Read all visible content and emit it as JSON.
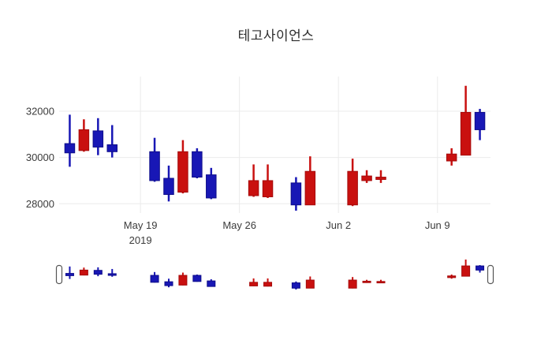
{
  "chart_data": {
    "type": "candlestick",
    "title": "테고사이언스",
    "x_epoch": "2019-05-13",
    "xlim_days": [
      0.25,
      30.75
    ],
    "ylim": [
      27600,
      33500
    ],
    "yticks": [
      28000,
      30000,
      32000
    ],
    "ytick_labels": [
      "28000",
      "30000",
      "32000"
    ],
    "xticks": [
      {
        "date": "2019-05-19",
        "label": "May 19",
        "sublabel": "2019"
      },
      {
        "date": "2019-05-26",
        "label": "May 26",
        "sublabel": ""
      },
      {
        "date": "2019-06-02",
        "label": "Jun 2",
        "sublabel": ""
      },
      {
        "date": "2019-06-09",
        "label": "Jun 9",
        "sublabel": ""
      }
    ],
    "grid": true,
    "legend": "none",
    "candles": [
      {
        "date": "2019-05-14",
        "open": 30600,
        "high": 31850,
        "low": 29600,
        "close": 30200
      },
      {
        "date": "2019-05-15",
        "open": 30300,
        "high": 31650,
        "low": 30250,
        "close": 31200
      },
      {
        "date": "2019-05-16",
        "open": 31150,
        "high": 31700,
        "low": 30100,
        "close": 30450
      },
      {
        "date": "2019-05-17",
        "open": 30550,
        "high": 31400,
        "low": 30000,
        "close": 30250
      },
      {
        "date": "2019-05-20",
        "open": 30250,
        "high": 30850,
        "low": 28950,
        "close": 29000
      },
      {
        "date": "2019-05-21",
        "open": 29100,
        "high": 29650,
        "low": 28100,
        "close": 28400
      },
      {
        "date": "2019-05-22",
        "open": 28500,
        "high": 30750,
        "low": 28450,
        "close": 30250
      },
      {
        "date": "2019-05-23",
        "open": 30250,
        "high": 30400,
        "low": 29100,
        "close": 29150
      },
      {
        "date": "2019-05-24",
        "open": 29250,
        "high": 29550,
        "low": 28200,
        "close": 28250
      },
      {
        "date": "2019-05-27",
        "open": 28350,
        "high": 29700,
        "low": 28300,
        "close": 29000
      },
      {
        "date": "2019-05-28",
        "open": 28300,
        "high": 29700,
        "low": 28250,
        "close": 29000
      },
      {
        "date": "2019-05-30",
        "open": 28900,
        "high": 29150,
        "low": 27700,
        "close": 27950
      },
      {
        "date": "2019-05-31",
        "open": 27950,
        "high": 30050,
        "low": 27950,
        "close": 29400
      },
      {
        "date": "2019-06-03",
        "open": 27950,
        "high": 29950,
        "low": 27900,
        "close": 29400
      },
      {
        "date": "2019-06-04",
        "open": 29000,
        "high": 29450,
        "low": 28900,
        "close": 29200
      },
      {
        "date": "2019-06-05",
        "open": 29050,
        "high": 29450,
        "low": 28900,
        "close": 29150
      },
      {
        "date": "2019-06-10",
        "open": 29850,
        "high": 30400,
        "low": 29650,
        "close": 30150
      },
      {
        "date": "2019-06-11",
        "open": 30100,
        "high": 33100,
        "low": 30100,
        "close": 31950
      },
      {
        "date": "2019-06-12",
        "open": 31950,
        "high": 32100,
        "low": 30750,
        "close": 31200
      }
    ],
    "colors": {
      "increasing_fill": "#c9100f",
      "increasing_line": "#a50b0b",
      "decreasing_fill": "#1817b5",
      "decreasing_line": "#0e0d8a",
      "grid": "#ebebeb",
      "tick_text": "#3b3b3b",
      "background": "#ffffff",
      "slider_handle_fill": "#ffffff",
      "slider_handle_line": "#555555"
    },
    "rangeslider": {
      "enabled": true,
      "ylim": [
        27700,
        33100
      ]
    }
  }
}
